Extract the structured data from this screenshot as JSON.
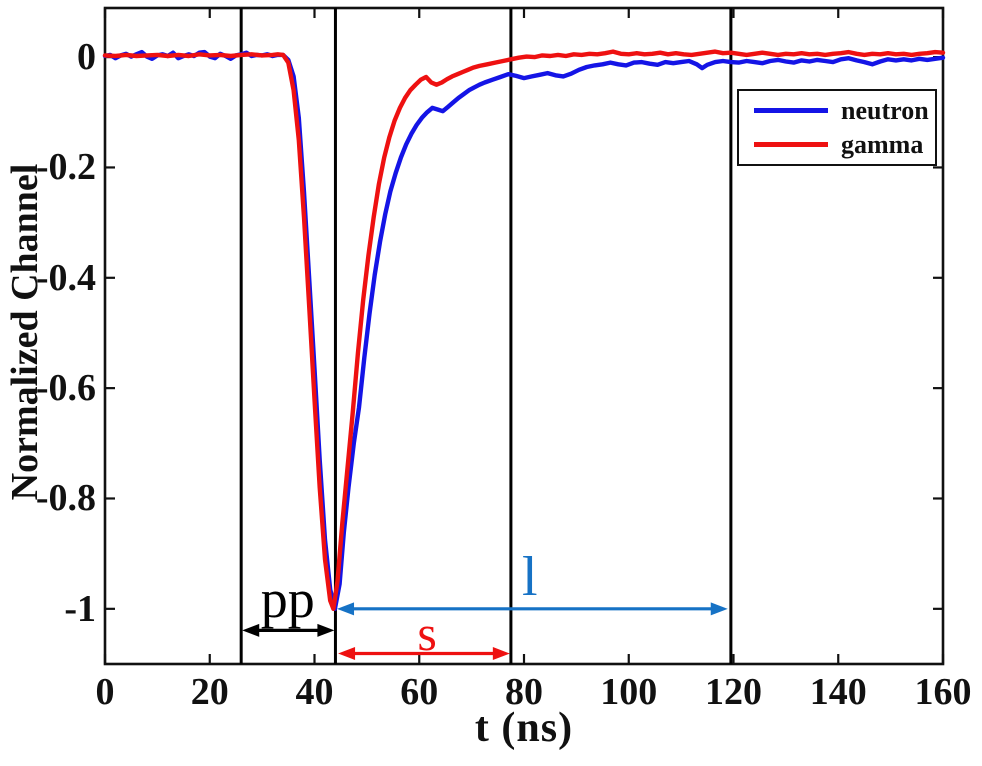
{
  "chart_data": {
    "type": "line",
    "title": "",
    "xlabel": "t (ns)",
    "ylabel": "Normalized Channel",
    "xlim": [
      0,
      160
    ],
    "ylim": [
      -1.1,
      0.089
    ],
    "grid": false,
    "axis_color": "#111111",
    "xticks": {
      "values": [
        0,
        20,
        40,
        60,
        80,
        100,
        120,
        140,
        160
      ],
      "labels": [
        "0",
        "20",
        "40",
        "60",
        "80",
        "100",
        "120",
        "140",
        "160"
      ]
    },
    "yticks": {
      "values": [
        0,
        -0.2,
        -0.4,
        -0.6,
        -0.8,
        -1
      ],
      "labels": [
        "0",
        "-0.2",
        "-0.4",
        "-0.6",
        "-0.8",
        "-1"
      ]
    },
    "legend": {
      "position": "upper right",
      "entries": [
        {
          "label": "neutron",
          "color": "#1414e6"
        },
        {
          "label": "gamma",
          "color": "#ee1111"
        }
      ]
    },
    "marker_lines_ns": [
      26,
      44,
      77.5,
      119.5
    ],
    "annotations": [
      {
        "label": "pp",
        "color": "#000000",
        "arrow_from_ns": 26.2,
        "arrow_to_ns": 43.8,
        "arrow_y": -1.039,
        "label_at": [
          34.9,
          -0.982
        ]
      },
      {
        "label": "s",
        "color": "#ee1111",
        "arrow_from_ns": 44.5,
        "arrow_to_ns": 77.3,
        "arrow_y": -1.081,
        "label_at": [
          61.5,
          -1.044
        ]
      },
      {
        "label": "l",
        "color": "#1672c5",
        "arrow_from_ns": 44.3,
        "arrow_to_ns": 118.9,
        "arrow_y": -1.0,
        "label_at": [
          81.1,
          -0.942
        ]
      }
    ],
    "series": [
      {
        "name": "neutron",
        "color": "#1414e6",
        "points": [
          [
            0,
            0.002
          ],
          [
            1,
            0.004
          ],
          [
            2,
            -0.002
          ],
          [
            3,
            0.003
          ],
          [
            4,
            0.006
          ],
          [
            5,
            0.001
          ],
          [
            6,
            0.005
          ],
          [
            7,
            0.009
          ],
          [
            8,
            0.001
          ],
          [
            9,
            -0.003
          ],
          [
            10,
            0.003
          ],
          [
            11,
            0.005
          ],
          [
            12,
            0.002
          ],
          [
            13,
            0.008
          ],
          [
            14,
            -0.002
          ],
          [
            15,
            0.002
          ],
          [
            16,
            0.005
          ],
          [
            17,
            0.002
          ],
          [
            18,
            0.008
          ],
          [
            19,
            0.009
          ],
          [
            20,
            0.001
          ],
          [
            21,
            -0.002
          ],
          [
            22,
            0.006
          ],
          [
            23,
            0.002
          ],
          [
            24,
            -0.003
          ],
          [
            25,
            0.003
          ],
          [
            26,
            0.005
          ],
          [
            27,
            0.008
          ],
          [
            28,
            0.002
          ],
          [
            29,
            0.004
          ],
          [
            30,
            0.003
          ],
          [
            31,
            0.005
          ],
          [
            32,
            0.002
          ],
          [
            33,
            0.004
          ],
          [
            34,
            0.004
          ],
          [
            35,
            -0.005
          ],
          [
            36,
            -0.035
          ],
          [
            37,
            -0.11
          ],
          [
            38,
            -0.245
          ],
          [
            39,
            -0.405
          ],
          [
            40,
            -0.565
          ],
          [
            41,
            -0.73
          ],
          [
            42,
            -0.875
          ],
          [
            43,
            -0.965
          ],
          [
            43.9,
            -1.0
          ],
          [
            44.8,
            -0.955
          ],
          [
            45.6,
            -0.862
          ],
          [
            46.5,
            -0.78
          ],
          [
            47.5,
            -0.7
          ],
          [
            48.5,
            -0.635
          ],
          [
            49.5,
            -0.545
          ],
          [
            50.5,
            -0.465
          ],
          [
            51.5,
            -0.395
          ],
          [
            52.5,
            -0.335
          ],
          [
            53.5,
            -0.285
          ],
          [
            54.5,
            -0.243
          ],
          [
            55.5,
            -0.21
          ],
          [
            56.5,
            -0.182
          ],
          [
            57.5,
            -0.158
          ],
          [
            58.5,
            -0.139
          ],
          [
            59.5,
            -0.123
          ],
          [
            60.5,
            -0.11
          ],
          [
            61.5,
            -0.1
          ],
          [
            62.5,
            -0.092
          ],
          [
            63.5,
            -0.095
          ],
          [
            64.5,
            -0.098
          ],
          [
            65.5,
            -0.09
          ],
          [
            66.5,
            -0.082
          ],
          [
            67.5,
            -0.074
          ],
          [
            68.5,
            -0.067
          ],
          [
            69.5,
            -0.06
          ],
          [
            70.5,
            -0.055
          ],
          [
            71.5,
            -0.05
          ],
          [
            72.5,
            -0.046
          ],
          [
            74,
            -0.041
          ],
          [
            75.5,
            -0.036
          ],
          [
            77,
            -0.031
          ],
          [
            78.5,
            -0.034
          ],
          [
            80,
            -0.038
          ],
          [
            81.5,
            -0.035
          ],
          [
            83,
            -0.032
          ],
          [
            84.5,
            -0.029
          ],
          [
            86,
            -0.033
          ],
          [
            87.5,
            -0.035
          ],
          [
            89,
            -0.03
          ],
          [
            90.5,
            -0.023
          ],
          [
            92,
            -0.018
          ],
          [
            93.5,
            -0.015
          ],
          [
            95,
            -0.013
          ],
          [
            96.5,
            -0.01
          ],
          [
            98,
            -0.013
          ],
          [
            99.5,
            -0.015
          ],
          [
            101,
            -0.01
          ],
          [
            102.5,
            -0.009
          ],
          [
            104,
            -0.012
          ],
          [
            105.5,
            -0.014
          ],
          [
            107,
            -0.009
          ],
          [
            108.5,
            -0.011
          ],
          [
            110,
            -0.009
          ],
          [
            111.5,
            -0.007
          ],
          [
            113,
            -0.013
          ],
          [
            114,
            -0.02
          ],
          [
            115,
            -0.014
          ],
          [
            116.5,
            -0.009
          ],
          [
            118,
            -0.007
          ],
          [
            119.5,
            -0.009
          ],
          [
            121,
            -0.01
          ],
          [
            122.5,
            -0.007
          ],
          [
            124,
            -0.009
          ],
          [
            125.5,
            -0.011
          ],
          [
            127,
            -0.007
          ],
          [
            128.5,
            -0.005
          ],
          [
            130,
            -0.008
          ],
          [
            131.5,
            -0.01
          ],
          [
            133,
            -0.006
          ],
          [
            134.5,
            -0.008
          ],
          [
            136,
            -0.005
          ],
          [
            137.5,
            -0.007
          ],
          [
            139,
            -0.009
          ],
          [
            140.5,
            -0.004
          ],
          [
            142,
            -0.002
          ],
          [
            143.5,
            -0.006
          ],
          [
            145,
            -0.009
          ],
          [
            146.5,
            -0.013
          ],
          [
            148,
            -0.008
          ],
          [
            149.5,
            -0.004
          ],
          [
            151,
            -0.006
          ],
          [
            152.5,
            -0.004
          ],
          [
            154,
            -0.006
          ],
          [
            155.5,
            -0.003
          ],
          [
            157,
            -0.005
          ],
          [
            158.5,
            -0.003
          ],
          [
            160,
            -0.001
          ]
        ]
      },
      {
        "name": "gamma",
        "color": "#ee1111",
        "points": [
          [
            0,
            0.003
          ],
          [
            2,
            0.002
          ],
          [
            4,
            0.004
          ],
          [
            6,
            0.002
          ],
          [
            8,
            0.003
          ],
          [
            10,
            0.004
          ],
          [
            12,
            0.002
          ],
          [
            14,
            0.004
          ],
          [
            16,
            0.002
          ],
          [
            18,
            0.005
          ],
          [
            20,
            0.003
          ],
          [
            22,
            0.004
          ],
          [
            24,
            0.002
          ],
          [
            26,
            0.004
          ],
          [
            28,
            0.005
          ],
          [
            30,
            0.003
          ],
          [
            32,
            0.004
          ],
          [
            33,
            0.005
          ],
          [
            34,
            0.004
          ],
          [
            35,
            -0.01
          ],
          [
            36,
            -0.06
          ],
          [
            37,
            -0.15
          ],
          [
            38,
            -0.29
          ],
          [
            39,
            -0.455
          ],
          [
            40,
            -0.62
          ],
          [
            41,
            -0.78
          ],
          [
            42,
            -0.91
          ],
          [
            43,
            -0.985
          ],
          [
            43.6,
            -1.0
          ],
          [
            44.4,
            -0.95
          ],
          [
            45.3,
            -0.845
          ],
          [
            46.3,
            -0.745
          ],
          [
            47.3,
            -0.645
          ],
          [
            48.3,
            -0.535
          ],
          [
            49.3,
            -0.44
          ],
          [
            50.3,
            -0.36
          ],
          [
            51.3,
            -0.29
          ],
          [
            52.3,
            -0.23
          ],
          [
            53.3,
            -0.182
          ],
          [
            54.3,
            -0.145
          ],
          [
            55.3,
            -0.115
          ],
          [
            56.3,
            -0.092
          ],
          [
            57.3,
            -0.074
          ],
          [
            58.3,
            -0.06
          ],
          [
            59.3,
            -0.05
          ],
          [
            60.3,
            -0.041
          ],
          [
            61.3,
            -0.036
          ],
          [
            62.3,
            -0.046
          ],
          [
            63.3,
            -0.05
          ],
          [
            64.3,
            -0.046
          ],
          [
            65.3,
            -0.04
          ],
          [
            66.3,
            -0.035
          ],
          [
            67.3,
            -0.031
          ],
          [
            68.3,
            -0.027
          ],
          [
            69.3,
            -0.023
          ],
          [
            70.3,
            -0.019
          ],
          [
            71.5,
            -0.016
          ],
          [
            73,
            -0.013
          ],
          [
            74.5,
            -0.01
          ],
          [
            76,
            -0.007
          ],
          [
            77.5,
            -0.004
          ],
          [
            79,
            -0.001
          ],
          [
            80.5,
            0.001
          ],
          [
            82,
            0.0
          ],
          [
            83.5,
            0.003
          ],
          [
            85,
            0.002
          ],
          [
            86.5,
            0.004
          ],
          [
            88,
            0.002
          ],
          [
            89.5,
            0.005
          ],
          [
            91,
            0.004
          ],
          [
            92.5,
            0.006
          ],
          [
            94,
            0.005
          ],
          [
            95.5,
            0.007
          ],
          [
            97,
            0.01
          ],
          [
            98.5,
            0.006
          ],
          [
            100,
            0.005
          ],
          [
            101.5,
            0.007
          ],
          [
            103,
            0.005
          ],
          [
            104.5,
            0.006
          ],
          [
            106,
            0.008
          ],
          [
            107.5,
            0.005
          ],
          [
            109,
            0.007
          ],
          [
            110.5,
            0.005
          ],
          [
            112,
            0.004
          ],
          [
            113.5,
            0.006
          ],
          [
            115,
            0.008
          ],
          [
            116.5,
            0.01
          ],
          [
            118,
            0.007
          ],
          [
            119.5,
            0.008
          ],
          [
            121,
            0.006
          ],
          [
            122.5,
            0.004
          ],
          [
            124,
            0.006
          ],
          [
            125.5,
            0.008
          ],
          [
            127,
            0.006
          ],
          [
            128.5,
            0.004
          ],
          [
            130,
            0.006
          ],
          [
            131.5,
            0.005
          ],
          [
            133,
            0.007
          ],
          [
            134.5,
            0.005
          ],
          [
            136,
            0.006
          ],
          [
            137.5,
            0.004
          ],
          [
            139,
            0.006
          ],
          [
            140.5,
            0.007
          ],
          [
            142,
            0.009
          ],
          [
            143.5,
            0.006
          ],
          [
            145,
            0.004
          ],
          [
            146.5,
            0.006
          ],
          [
            148,
            0.005
          ],
          [
            149.5,
            0.007
          ],
          [
            151,
            0.005
          ],
          [
            152.5,
            0.006
          ],
          [
            154,
            0.004
          ],
          [
            155.5,
            0.006
          ],
          [
            157,
            0.007
          ],
          [
            158.5,
            0.009
          ],
          [
            160,
            0.008
          ]
        ]
      }
    ]
  }
}
